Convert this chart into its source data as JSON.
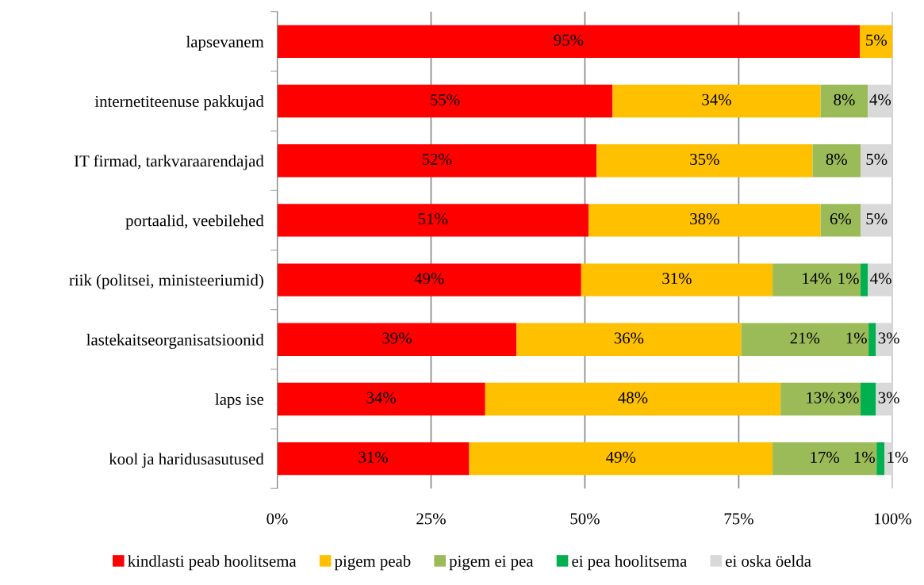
{
  "chart_data": {
    "type": "bar",
    "orientation": "horizontal",
    "stacked": true,
    "categories": [
      "lapsevanem",
      "internetiteenuse pakkujad",
      "IT firmad, tarkvaraarendajad",
      "portaalid, veebilehed",
      "riik (politsei, ministeeriumid)",
      "lastekaitseorganisatsioonid",
      "laps ise",
      "kool ja haridusasutused"
    ],
    "series": [
      {
        "name": "kindlasti peab hoolitsema",
        "color": "#ff0000",
        "values": [
          94.7,
          54.5,
          51.9,
          50.6,
          49.4,
          38.9,
          33.8,
          31.2
        ],
        "value_labels": [
          "95%",
          "55%",
          "52%",
          "51%",
          "49%",
          "39%",
          "34%",
          "31%"
        ]
      },
      {
        "name": "pigem peab",
        "color": "#ffc000",
        "values": [
          5.3,
          33.8,
          35.1,
          37.7,
          31.1,
          36.5,
          48.0,
          49.3
        ],
        "value_labels": [
          "5%",
          "34%",
          "35%",
          "38%",
          "31%",
          "36%",
          "48%",
          "49%"
        ]
      },
      {
        "name": "pigem ei pea",
        "color": "#9bbb59",
        "values": [
          null,
          7.7,
          7.8,
          6.5,
          14.3,
          20.7,
          13.0,
          16.9
        ],
        "value_labels": [
          null,
          "8%",
          "8%",
          "6%",
          "14%",
          "21%",
          "13%",
          "17%"
        ]
      },
      {
        "name": "ei pea hoolitsema",
        "color": "#00b050",
        "values": [
          null,
          null,
          null,
          null,
          1.2,
          1.2,
          2.5,
          1.3
        ],
        "value_labels": [
          null,
          null,
          null,
          null,
          "1%",
          "1%",
          "3%",
          "1%"
        ]
      },
      {
        "name": "ei oska öelda",
        "color": "#d9d9d9",
        "values": [
          null,
          4.0,
          5.2,
          5.2,
          4.0,
          2.7,
          2.7,
          1.3
        ],
        "value_labels": [
          null,
          "4%",
          "5%",
          "5%",
          "4%",
          "3%",
          "3%",
          "1%"
        ]
      }
    ],
    "xlim": [
      0,
      100
    ],
    "xticks": [
      {
        "value": 0,
        "label": "0%"
      },
      {
        "value": 25,
        "label": "25%"
      },
      {
        "value": 50,
        "label": "50%"
      },
      {
        "value": 75,
        "label": "75%"
      },
      {
        "value": 100,
        "label": "100%"
      }
    ],
    "grid": "x",
    "legend": "bottom"
  }
}
